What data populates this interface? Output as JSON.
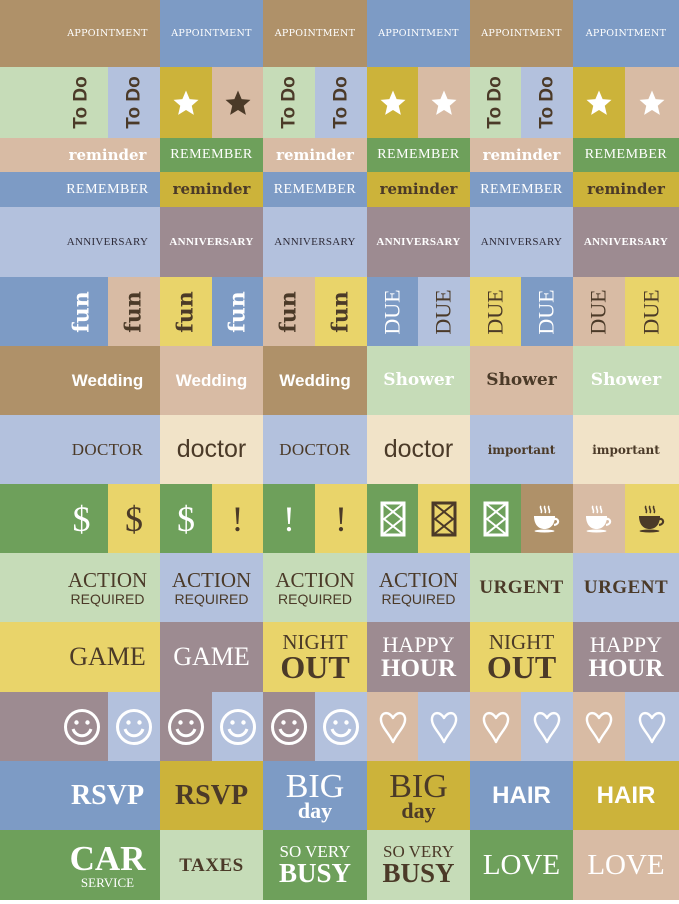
{
  "colors": {
    "T": "#AF9169",
    "B": "#7D9BC5",
    "LB": "#B3C1DD",
    "LG": "#C6DCB8",
    "M": "#CCB33A",
    "Y": "#E9D46A",
    "P": "#D8BBA4",
    "G": "#6EA05B",
    "V": "#9D8B91",
    "C": "#F1E3C8",
    "dark": "#4B3A28",
    "white": "#FFFFFF",
    "ink": "#2E2B38"
  },
  "rows": [
    {
      "h": 67,
      "half": false,
      "cells": [
        {
          "text": "APPOINTMENT",
          "bg": "T",
          "fg": "white",
          "style": "cap-sm"
        },
        {
          "text": "APPOINTMENT",
          "bg": "B",
          "fg": "white",
          "style": "cap-sm"
        },
        {
          "text": "APPOINTMENT",
          "bg": "T",
          "fg": "white",
          "style": "cap-sm"
        },
        {
          "text": "APPOINTMENT",
          "bg": "B",
          "fg": "white",
          "style": "cap-sm"
        },
        {
          "text": "APPOINTMENT",
          "bg": "T",
          "fg": "white",
          "style": "cap-sm"
        },
        {
          "text": "APPOINTMENT",
          "bg": "B",
          "fg": "white",
          "style": "cap-sm"
        }
      ]
    },
    {
      "h": 71,
      "half": true,
      "cells": [
        {
          "text": "To Do",
          "bg": "LG",
          "fg": "dark",
          "style": "rot rot-sans"
        },
        {
          "text": "To Do",
          "bg": "LB",
          "fg": "dark",
          "style": "rot rot-sans"
        },
        {
          "icon": "star-icon",
          "bg": "M",
          "fg": "white"
        },
        {
          "icon": "star-icon",
          "bg": "P",
          "fg": "dark"
        },
        {
          "text": "To Do",
          "bg": "LG",
          "fg": "dark",
          "style": "rot rot-sans"
        },
        {
          "text": "To Do",
          "bg": "LB",
          "fg": "dark",
          "style": "rot rot-sans"
        },
        {
          "icon": "star-icon",
          "bg": "M",
          "fg": "white"
        },
        {
          "icon": "star-icon",
          "bg": "P",
          "fg": "white"
        },
        {
          "text": "To Do",
          "bg": "LG",
          "fg": "dark",
          "style": "rot rot-sans"
        },
        {
          "text": "To Do",
          "bg": "LB",
          "fg": "dark",
          "style": "rot rot-sans"
        },
        {
          "icon": "star-icon",
          "bg": "M",
          "fg": "white"
        },
        {
          "icon": "star-icon",
          "bg": "P",
          "fg": "white"
        }
      ]
    },
    {
      "h": 34,
      "half": false,
      "cells": [
        {
          "text": "reminder",
          "bg": "P",
          "fg": "white",
          "style": "remind"
        },
        {
          "text": "REMEMBER",
          "bg": "G",
          "fg": "white",
          "style": "rem-caps"
        },
        {
          "text": "reminder",
          "bg": "P",
          "fg": "white",
          "style": "remind"
        },
        {
          "text": "REMEMBER",
          "bg": "G",
          "fg": "white",
          "style": "rem-caps"
        },
        {
          "text": "reminder",
          "bg": "P",
          "fg": "white",
          "style": "remind"
        },
        {
          "text": "REMEMBER",
          "bg": "G",
          "fg": "white",
          "style": "rem-caps"
        }
      ]
    },
    {
      "h": 35,
      "half": false,
      "cells": [
        {
          "text": "REMEMBER",
          "bg": "B",
          "fg": "white",
          "style": "rem-caps"
        },
        {
          "text": "reminder",
          "bg": "M",
          "fg": "dark",
          "style": "remind"
        },
        {
          "text": "REMEMBER",
          "bg": "B",
          "fg": "white",
          "style": "rem-caps"
        },
        {
          "text": "reminder",
          "bg": "M",
          "fg": "dark",
          "style": "remind"
        },
        {
          "text": "REMEMBER",
          "bg": "B",
          "fg": "white",
          "style": "rem-caps"
        },
        {
          "text": "reminder",
          "bg": "M",
          "fg": "dark",
          "style": "remind"
        }
      ]
    },
    {
      "h": 70,
      "half": false,
      "cells": [
        {
          "text": "ANNIVERSARY",
          "bg": "LB",
          "fg": "ink",
          "style": "anniv"
        },
        {
          "text": "ANNIVERSARY",
          "bg": "V",
          "fg": "white",
          "style": "anniv white"
        },
        {
          "text": "ANNIVERSARY",
          "bg": "LB",
          "fg": "ink",
          "style": "anniv"
        },
        {
          "text": "ANNIVERSARY",
          "bg": "V",
          "fg": "white",
          "style": "anniv white"
        },
        {
          "text": "ANNIVERSARY",
          "bg": "LB",
          "fg": "ink",
          "style": "anniv"
        },
        {
          "text": "ANNIVERSARY",
          "bg": "V",
          "fg": "white",
          "style": "anniv white"
        }
      ]
    },
    {
      "h": 69,
      "half": true,
      "cells": [
        {
          "text": "fun",
          "bg": "B",
          "fg": "white",
          "style": "rot rot-fun"
        },
        {
          "text": "fun",
          "bg": "P",
          "fg": "dark",
          "style": "rot rot-fun"
        },
        {
          "text": "fun",
          "bg": "Y",
          "fg": "dark",
          "style": "rot rot-fun"
        },
        {
          "text": "fun",
          "bg": "B",
          "fg": "white",
          "style": "rot rot-fun"
        },
        {
          "text": "fun",
          "bg": "P",
          "fg": "dark",
          "style": "rot rot-fun"
        },
        {
          "text": "fun",
          "bg": "Y",
          "fg": "dark",
          "style": "rot rot-fun"
        },
        {
          "text": "DUE",
          "bg": "B",
          "fg": "white",
          "style": "rot rot-due"
        },
        {
          "text": "DUE",
          "bg": "LB",
          "fg": "dark",
          "style": "rot rot-due"
        },
        {
          "text": "DUE",
          "bg": "Y",
          "fg": "dark",
          "style": "rot rot-due"
        },
        {
          "text": "DUE",
          "bg": "B",
          "fg": "white",
          "style": "rot rot-due"
        },
        {
          "text": "DUE",
          "bg": "P",
          "fg": "dark",
          "style": "rot rot-due"
        },
        {
          "text": "DUE",
          "bg": "Y",
          "fg": "dark",
          "style": "rot rot-due"
        }
      ]
    },
    {
      "h": 69,
      "half": false,
      "cells": [
        {
          "text": "Wedding",
          "bg": "T",
          "fg": "white",
          "style": "sans-bold"
        },
        {
          "text": "Wedding",
          "bg": "P",
          "fg": "white",
          "style": "sans-bold"
        },
        {
          "text": "Wedding",
          "bg": "T",
          "fg": "white",
          "style": "sans-bold"
        },
        {
          "text": "Shower",
          "bg": "LG",
          "fg": "white",
          "style": "serif-bold"
        },
        {
          "text": "Shower",
          "bg": "P",
          "fg": "dark",
          "style": "serif-bold"
        },
        {
          "text": "Shower",
          "bg": "LG",
          "fg": "white",
          "style": "serif-bold"
        }
      ]
    },
    {
      "h": 69,
      "half": false,
      "cells": [
        {
          "text": "DOCTOR",
          "bg": "LB",
          "fg": "dark",
          "style": "caps-md"
        },
        {
          "text": "doctor",
          "bg": "C",
          "fg": "dark",
          "style": "sans-lg"
        },
        {
          "text": "DOCTOR",
          "bg": "LB",
          "fg": "dark",
          "style": "caps-md"
        },
        {
          "text": "doctor",
          "bg": "C",
          "fg": "dark",
          "style": "sans-lg"
        },
        {
          "text": "important",
          "bg": "LB",
          "fg": "dark",
          "style": "imp"
        },
        {
          "text": "important",
          "bg": "C",
          "fg": "dark",
          "style": "imp"
        }
      ]
    },
    {
      "h": 69,
      "half": true,
      "cells": [
        {
          "text": "$",
          "bg": "G",
          "fg": "white",
          "style": "glyph"
        },
        {
          "text": "$",
          "bg": "Y",
          "fg": "dark",
          "style": "glyph"
        },
        {
          "text": "$",
          "bg": "G",
          "fg": "white",
          "style": "glyph"
        },
        {
          "text": "!",
          "bg": "Y",
          "fg": "dark",
          "style": "glyph"
        },
        {
          "text": "!",
          "bg": "G",
          "fg": "white",
          "style": "glyph"
        },
        {
          "text": "!",
          "bg": "Y",
          "fg": "dark",
          "style": "glyph"
        },
        {
          "icon": "envelope-icon",
          "bg": "G",
          "fg": "white"
        },
        {
          "icon": "envelope-icon",
          "bg": "Y",
          "fg": "dark"
        },
        {
          "icon": "envelope-icon",
          "bg": "G",
          "fg": "white"
        },
        {
          "icon": "coffee-cup-icon",
          "bg": "T",
          "fg": "white"
        },
        {
          "icon": "coffee-cup-icon",
          "bg": "P",
          "fg": "white"
        },
        {
          "icon": "coffee-cup-icon",
          "bg": "Y",
          "fg": "dark"
        }
      ]
    },
    {
      "h": 69,
      "half": false,
      "cells": [
        {
          "l1": "ACTION",
          "l2": "REQUIRED",
          "bg": "LG",
          "fg": "dark",
          "style": "action"
        },
        {
          "l1": "ACTION",
          "l2": "REQUIRED",
          "bg": "LB",
          "fg": "dark",
          "style": "action"
        },
        {
          "l1": "ACTION",
          "l2": "REQUIRED",
          "bg": "LG",
          "fg": "dark",
          "style": "action"
        },
        {
          "l1": "ACTION",
          "l2": "REQUIRED",
          "bg": "LB",
          "fg": "dark",
          "style": "action"
        },
        {
          "text": "URGENT",
          "bg": "LG",
          "fg": "dark",
          "style": "urgent"
        },
        {
          "text": "URGENT",
          "bg": "LB",
          "fg": "dark",
          "style": "urgent"
        }
      ]
    },
    {
      "h": 70,
      "half": false,
      "cells": [
        {
          "text": "GAME",
          "bg": "Y",
          "fg": "dark",
          "style": "game"
        },
        {
          "text": "GAME",
          "bg": "V",
          "fg": "white",
          "style": "game"
        },
        {
          "l1": "NIGHT",
          "l2": "OUT",
          "bg": "Y",
          "fg": "dark",
          "style": "night"
        },
        {
          "l1": "HAPPY",
          "l2": "HOUR",
          "bg": "V",
          "fg": "white",
          "style": "happy"
        },
        {
          "l1": "NIGHT",
          "l2": "OUT",
          "bg": "Y",
          "fg": "dark",
          "style": "night"
        },
        {
          "l1": "HAPPY",
          "l2": "HOUR",
          "bg": "V",
          "fg": "white",
          "style": "happy"
        }
      ]
    },
    {
      "h": 69,
      "half": true,
      "cells": [
        {
          "icon": "smiley-icon",
          "bg": "V",
          "fg": "white"
        },
        {
          "icon": "smiley-icon",
          "bg": "LB",
          "fg": "white"
        },
        {
          "icon": "smiley-icon",
          "bg": "V",
          "fg": "white"
        },
        {
          "icon": "smiley-icon",
          "bg": "LB",
          "fg": "white"
        },
        {
          "icon": "smiley-icon",
          "bg": "V",
          "fg": "white"
        },
        {
          "icon": "smiley-icon",
          "bg": "LB",
          "fg": "white"
        },
        {
          "icon": "heart-icon",
          "bg": "P",
          "fg": "white"
        },
        {
          "icon": "heart-icon",
          "bg": "LB",
          "fg": "white"
        },
        {
          "icon": "heart-icon",
          "bg": "P",
          "fg": "white"
        },
        {
          "icon": "heart-icon",
          "bg": "LB",
          "fg": "white"
        },
        {
          "icon": "heart-icon",
          "bg": "P",
          "fg": "white"
        },
        {
          "icon": "heart-icon",
          "bg": "LB",
          "fg": "white"
        }
      ]
    },
    {
      "h": 69,
      "half": false,
      "cells": [
        {
          "text": "RSVP",
          "bg": "B",
          "fg": "white",
          "style": "rsvp"
        },
        {
          "text": "RSVP",
          "bg": "M",
          "fg": "dark",
          "style": "rsvp"
        },
        {
          "l1": "BIG",
          "l2": "day",
          "bg": "B",
          "fg": "white",
          "style": "big"
        },
        {
          "l1": "BIG",
          "l2": "day",
          "bg": "M",
          "fg": "dark",
          "style": "big"
        },
        {
          "text": "HAIR",
          "bg": "B",
          "fg": "white",
          "style": "hair"
        },
        {
          "text": "HAIR",
          "bg": "M",
          "fg": "white",
          "style": "hair"
        }
      ]
    },
    {
      "h": 70,
      "half": false,
      "cells": [
        {
          "l1": "CAR",
          "l2": "SERVICE",
          "bg": "G",
          "fg": "white",
          "style": "car"
        },
        {
          "text": "TAXES",
          "bg": "LG",
          "fg": "dark",
          "style": "taxes"
        },
        {
          "l1": "SO VERY",
          "l2": "BUSY",
          "bg": "G",
          "fg": "white",
          "style": "busy"
        },
        {
          "l1": "SO VERY",
          "l2": "BUSY",
          "bg": "LG",
          "fg": "dark",
          "style": "busy"
        },
        {
          "text": "LOVE",
          "bg": "G",
          "fg": "white",
          "style": "love"
        },
        {
          "text": "LOVE",
          "bg": "P",
          "fg": "white",
          "style": "love"
        }
      ]
    }
  ]
}
